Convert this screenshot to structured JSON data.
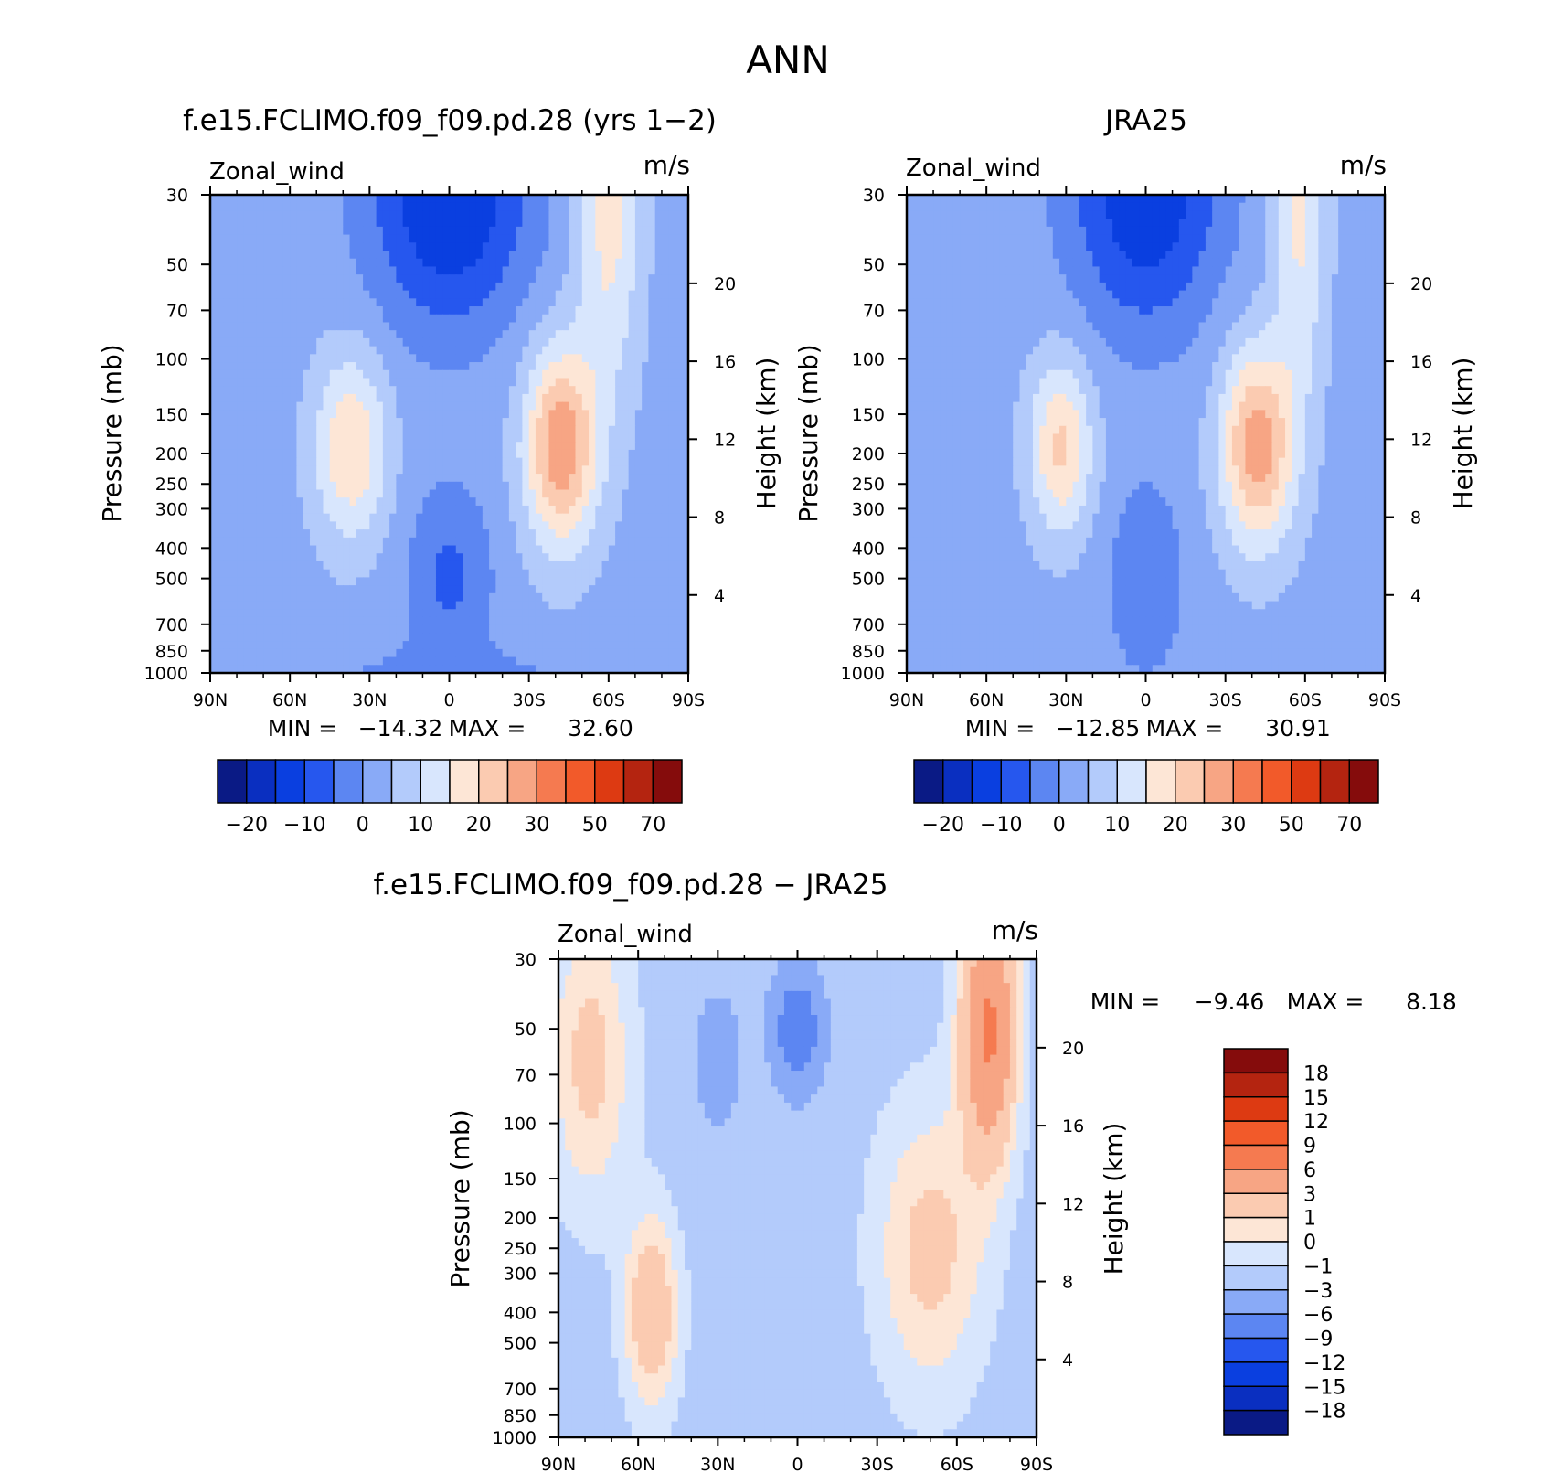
{
  "figure": {
    "title": "ANN"
  },
  "colors": {
    "absolute_fill": [
      "#0a1a85",
      "#0a2fc0",
      "#0a3fe0",
      "#2657ee",
      "#5c86f2",
      "#89aaf7",
      "#b3cbfb",
      "#d8e6fd",
      "#fde6d6",
      "#fbcbb1",
      "#f7a584",
      "#f57a50",
      "#f25a2a",
      "#dd3a12",
      "#b42410",
      "#850c0c"
    ],
    "difference_fill": [
      "#0a1a85",
      "#0a2fc0",
      "#0a3fe0",
      "#2657ee",
      "#5c86f2",
      "#89aaf7",
      "#b3cbfb",
      "#d8e6fd",
      "#fde6d6",
      "#fbcbb1",
      "#f7a584",
      "#f57a50",
      "#f25a2a",
      "#dd3a12",
      "#b42410",
      "#850c0c"
    ]
  },
  "panels": {
    "model": {
      "title": "f.e15.FCLIMO.f09_f09.pd.28 (yrs 1−2)",
      "variable": "Zonal_wind",
      "units": "m/s",
      "ylabel": "Pressure (mb)",
      "ylabel_right": "Height (km)",
      "min_label": "MIN =",
      "min_value": "−14.32",
      "max_label": "MAX =",
      "max_value": "32.60",
      "colorbar_labels": [
        "−20",
        "−10",
        "0",
        "10",
        "20",
        "30",
        "50",
        "70"
      ]
    },
    "obs": {
      "title": "JRA25",
      "variable": "Zonal_wind",
      "units": "m/s",
      "ylabel": "Pressure (mb)",
      "ylabel_right": "Height (km)",
      "min_label": "MIN =",
      "min_value": "−12.85",
      "max_label": "MAX =",
      "max_value": "30.91",
      "colorbar_labels": [
        "−20",
        "−10",
        "0",
        "10",
        "20",
        "30",
        "50",
        "70"
      ]
    },
    "diff": {
      "title": "f.e15.FCLIMO.f09_f09.pd.28 − JRA25",
      "variable": "Zonal_wind",
      "units": "m/s",
      "ylabel": "Pressure (mb)",
      "ylabel_right": "Height (km)",
      "min_label": "MIN =",
      "min_value": "−9.46",
      "max_label": "MAX =",
      "max_value": "8.18",
      "colorbar_labels": [
        "18",
        "15",
        "12",
        "9",
        "6",
        "3",
        "1",
        "0",
        "−1",
        "−3",
        "−6",
        "−9",
        "−12",
        "−15",
        "−18"
      ]
    }
  },
  "chart_data": [
    {
      "type": "heatmap",
      "title": "f.e15.FCLIMO.f09_f09.pd.28 (yrs 1−2)",
      "x_ticks": [
        "90N",
        "60N",
        "30N",
        "0",
        "30S",
        "60S",
        "90S"
      ],
      "y_ticks": [
        "30",
        "50",
        "70",
        "100",
        "150",
        "200",
        "250",
        "300",
        "400",
        "500",
        "700",
        "850",
        "1000"
      ],
      "y_ticks_right": [
        "20",
        "16",
        "12",
        "8",
        "4"
      ],
      "y_scale": "log",
      "ylim": [
        1000,
        30
      ],
      "levels": [
        -25,
        -20,
        -15,
        -10,
        -5,
        0,
        5,
        10,
        15,
        20,
        25,
        30,
        40,
        50,
        60,
        70,
        80
      ],
      "field": "model",
      "min": -14.32,
      "max": 32.6
    },
    {
      "type": "heatmap",
      "title": "JRA25",
      "x_ticks": [
        "90N",
        "60N",
        "30N",
        "0",
        "30S",
        "60S",
        "90S"
      ],
      "y_ticks": [
        "30",
        "50",
        "70",
        "100",
        "150",
        "200",
        "250",
        "300",
        "400",
        "500",
        "700",
        "850",
        "1000"
      ],
      "y_ticks_right": [
        "20",
        "16",
        "12",
        "8",
        "4"
      ],
      "y_scale": "log",
      "ylim": [
        1000,
        30
      ],
      "levels": [
        -25,
        -20,
        -15,
        -10,
        -5,
        0,
        5,
        10,
        15,
        20,
        25,
        30,
        40,
        50,
        60,
        70,
        80
      ],
      "field": "obs",
      "min": -12.85,
      "max": 30.91
    },
    {
      "type": "heatmap",
      "title": "f.e15.FCLIMO.f09_f09.pd.28 − JRA25",
      "x_ticks": [
        "90N",
        "60N",
        "30N",
        "0",
        "30S",
        "60S",
        "90S"
      ],
      "y_ticks": [
        "30",
        "50",
        "70",
        "100",
        "150",
        "200",
        "250",
        "300",
        "400",
        "500",
        "700",
        "850",
        "1000"
      ],
      "y_ticks_right": [
        "20",
        "16",
        "12",
        "8",
        "4"
      ],
      "y_scale": "log",
      "ylim": [
        1000,
        30
      ],
      "levels": [
        -21,
        -18,
        -15,
        -12,
        -9,
        -6,
        -3,
        -1,
        0,
        1,
        3,
        6,
        9,
        12,
        15,
        18,
        21
      ],
      "field": "diff",
      "min": -9.46,
      "max": 8.18
    }
  ]
}
